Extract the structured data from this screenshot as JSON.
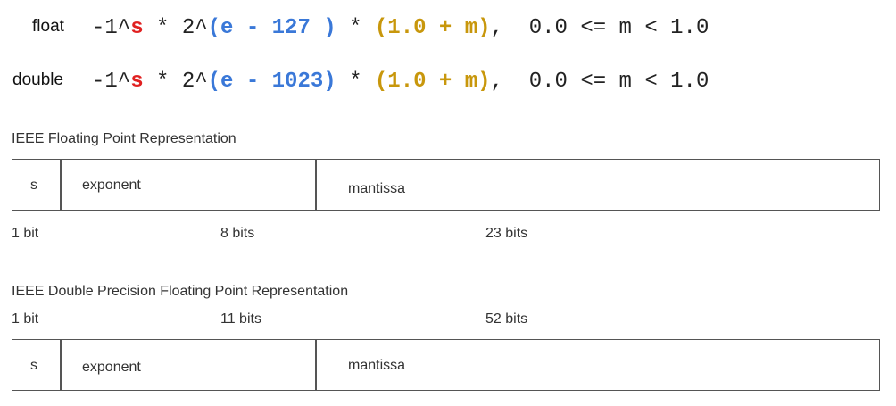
{
  "colors": {
    "sign": "#e02020",
    "exponent": "#3a78d8",
    "mantissa": "#c8970c",
    "border": "#555555"
  },
  "formulas": {
    "float": {
      "label": "float",
      "prefix": "-1^",
      "sign": "s",
      "mid": " * 2^",
      "exponent": "(e - 127 )",
      "times": " * ",
      "mantissa": "(1.0 + m)",
      "suffix": ",  0.0 <= m < 1.0"
    },
    "double": {
      "label": "double",
      "prefix": "-1^",
      "sign": "s",
      "mid": " * 2^",
      "exponent": "(e - 1023)",
      "times": " * ",
      "mantissa": "(1.0 + m)",
      "suffix": ",  0.0 <= m < 1.0"
    }
  },
  "single_rep": {
    "caption": "IEEE Floating Point Representation",
    "fields": {
      "sign": "s",
      "exponent": "exponent",
      "mantissa": "mantissa"
    },
    "bits": {
      "sign": "1 bit",
      "exponent": "8 bits",
      "mantissa": "23 bits"
    }
  },
  "double_rep": {
    "caption": "IEEE Double Precision Floating Point Representation",
    "fields": {
      "sign": "s",
      "exponent": "exponent",
      "mantissa": "mantissa"
    },
    "bits": {
      "sign": "1 bit",
      "exponent": "11 bits",
      "mantissa": "52 bits"
    }
  }
}
